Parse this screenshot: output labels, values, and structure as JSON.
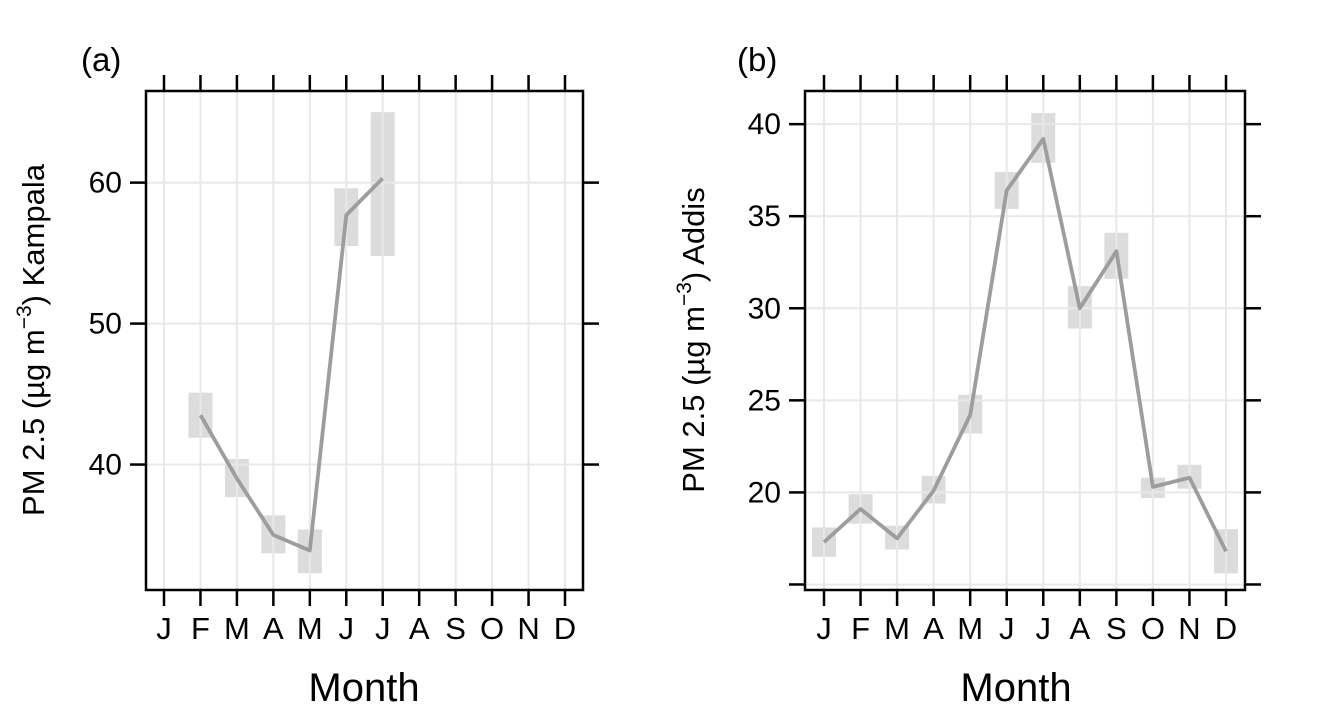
{
  "colors": {
    "background": "#ffffff",
    "line": "#9d9d9d",
    "ci_band": "#dcdcdc",
    "grid": "#e8e8e8",
    "axis": "#000000",
    "text": "#000000"
  },
  "chart_data": [
    {
      "type": "line",
      "panel_label": "(a)",
      "xlabel": "Month",
      "ylabel": {
        "pre": "PM 2.5 (µg m",
        "sup": "−3",
        "post": ") Kampala"
      },
      "categories": [
        "J",
        "F",
        "M",
        "A",
        "M",
        "J",
        "J",
        "A",
        "S",
        "O",
        "N",
        "D"
      ],
      "series": [
        {
          "values": [
            null,
            43.5,
            39.0,
            35.0,
            33.9,
            57.7,
            60.3,
            null,
            null,
            null,
            null,
            null
          ],
          "band_low": [
            null,
            41.9,
            37.7,
            33.7,
            32.3,
            55.5,
            54.8,
            null,
            null,
            null,
            null,
            null
          ],
          "band_high": [
            null,
            45.1,
            40.4,
            36.4,
            35.4,
            59.6,
            65.0,
            null,
            null,
            null,
            null,
            null
          ]
        }
      ],
      "ylim": [
        31.1,
        66.5
      ],
      "yticks": [
        40,
        50,
        60
      ],
      "ytick_labels": [
        "40",
        "50",
        "60"
      ],
      "grid": true,
      "legend": "none"
    },
    {
      "type": "line",
      "panel_label": "(b)",
      "xlabel": "Month",
      "ylabel": {
        "pre": "PM 2.5 (µg m",
        "sup": "−3",
        "post": ") Addis"
      },
      "categories": [
        "J",
        "F",
        "M",
        "A",
        "M",
        "J",
        "J",
        "A",
        "S",
        "O",
        "N",
        "D"
      ],
      "series": [
        {
          "values": [
            17.3,
            19.1,
            17.5,
            20.1,
            24.2,
            36.4,
            39.2,
            30.0,
            33.1,
            20.3,
            20.8,
            16.8
          ],
          "band_low": [
            16.5,
            18.3,
            16.9,
            19.4,
            23.2,
            35.4,
            37.9,
            28.9,
            31.6,
            19.7,
            20.2,
            15.6
          ],
          "band_high": [
            18.1,
            19.9,
            18.2,
            20.9,
            25.3,
            37.4,
            40.6,
            31.2,
            34.1,
            20.8,
            21.5,
            18.0
          ]
        }
      ],
      "ylim": [
        14.7,
        41.8
      ],
      "yticks": [
        15,
        20,
        25,
        30,
        35,
        40
      ],
      "ytick_labels": [
        "",
        "20",
        "25",
        "30",
        "35",
        "40"
      ],
      "grid": true,
      "legend": "none"
    }
  ]
}
